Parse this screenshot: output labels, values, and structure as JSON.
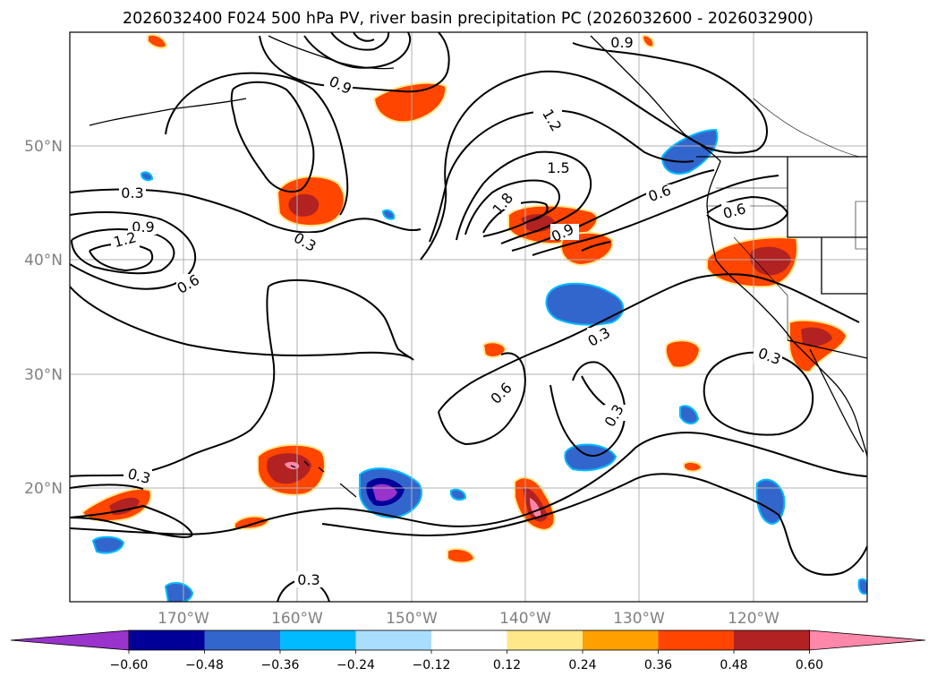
{
  "title": "2026032400 F024 500 hPa PV, river basin precipitation PC (2026032600 - 2026032900)",
  "axes": {
    "lat_labels": [
      "50°N",
      "40°N",
      "30°N",
      "20°N"
    ],
    "lat_values": [
      50,
      40,
      30,
      20
    ],
    "lon_labels": [
      "170°W",
      "160°W",
      "150°W",
      "140°W",
      "130°W",
      "120°W"
    ],
    "lon_values": [
      -170,
      -160,
      -150,
      -140,
      -130,
      -120
    ],
    "lat_range": [
      10,
      60
    ],
    "lon_range": [
      -180,
      -110
    ],
    "grid": true
  },
  "colorbar": {
    "levels": [
      -0.6,
      -0.48,
      -0.36,
      -0.24,
      -0.12,
      0.12,
      0.24,
      0.36,
      0.48,
      0.6
    ],
    "tick_labels": [
      "−0.60",
      "−0.48",
      "−0.36",
      "−0.24",
      "−0.12",
      "0.12",
      "0.24",
      "0.36",
      "0.48",
      "0.60"
    ],
    "colors": [
      "#9933cc",
      "#000099",
      "#3366cc",
      "#00bbff",
      "#aadeff",
      "#ffffff",
      "#ffe88a",
      "#ffa000",
      "#ff4500",
      "#b22222",
      "#ff88aa"
    ],
    "extend": "both"
  },
  "contour_labels": [
    "0.3",
    "0.6",
    "0.9",
    "1.2",
    "1.5",
    "1.8"
  ],
  "map_features": {
    "coastlines": true,
    "country_borders": true,
    "state_borders": true
  }
}
